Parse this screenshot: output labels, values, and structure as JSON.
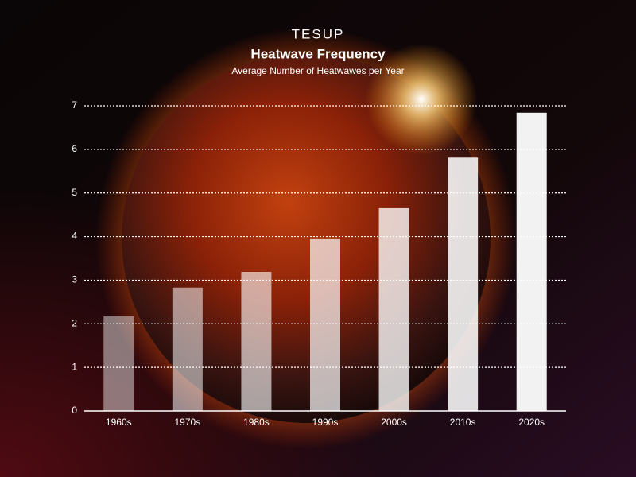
{
  "chart_data": {
    "type": "bar",
    "brand": "TESUP",
    "title": "Heatwave Frequency",
    "subtitle": "Average Number of Heatwawes per Year",
    "categories": [
      "1960s",
      "1970s",
      "1980s",
      "1990s",
      "2000s",
      "2010s",
      "2020s"
    ],
    "values": [
      2.17,
      2.83,
      3.19,
      3.94,
      4.65,
      5.81,
      6.84
    ],
    "color": "#ffffff",
    "ylim": [
      0,
      7
    ],
    "yticks": [
      0,
      1,
      2,
      3,
      4,
      5,
      6,
      7
    ],
    "grid": true
  }
}
